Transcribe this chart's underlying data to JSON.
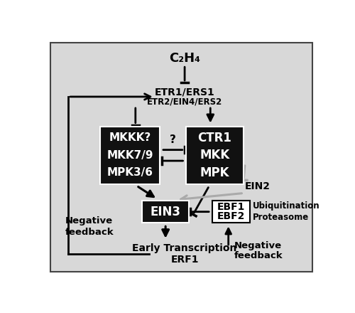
{
  "bg_color": "#d8d8d8",
  "border_color": "#444444",
  "box_dark": "#111111",
  "text_white": "#ffffff",
  "text_black": "#000000",
  "arrow_gray": "#aaaaaa",
  "c2h4": "C₂H₄",
  "etr_label1": "ETR1/ERS1",
  "etr_label2": "ETR2/EIN4/ERS2",
  "left_box_lines": [
    "MKKK?",
    "MKK7/9",
    "MPK3/6"
  ],
  "right_box_lines": [
    "CTR1",
    "MKK",
    "MPK"
  ],
  "ein3_label": "EIN3",
  "ebf_lines": [
    "EBF1",
    "EBF2"
  ],
  "ein2_label": "EIN2",
  "ubiq_lines": [
    "Ubiquitination",
    "Proteasome"
  ],
  "neg_fb_left_lines": [
    "Negative",
    "feedback"
  ],
  "neg_fb_right_lines": [
    "Negative",
    "feedback"
  ],
  "early_lines": [
    "Early Transcription",
    "ERF1"
  ],
  "q_mark": "?"
}
